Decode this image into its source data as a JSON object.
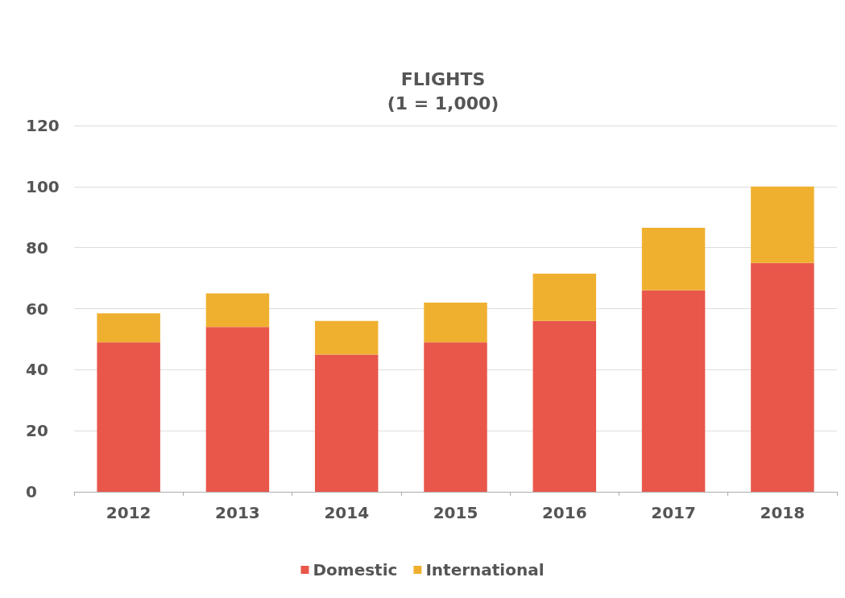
{
  "chart_data": {
    "type": "bar",
    "title": "FLIGHTS\n(1 = 1,000)",
    "categories": [
      "2012",
      "2013",
      "2014",
      "2015",
      "2016",
      "2017",
      "2018"
    ],
    "series": [
      {
        "name": "Domestic",
        "color": "#e8574a",
        "values": [
          49,
          54,
          45,
          49,
          56,
          66,
          75
        ]
      },
      {
        "name": "International",
        "color": "#efb030",
        "values": [
          9.5,
          11,
          11,
          13,
          15.5,
          20.5,
          25
        ]
      }
    ],
    "stacked": true,
    "ylim": [
      0,
      120
    ],
    "yticks": [
      0,
      20,
      40,
      60,
      80,
      100,
      120
    ],
    "grid": "y",
    "legend": "bottom"
  }
}
